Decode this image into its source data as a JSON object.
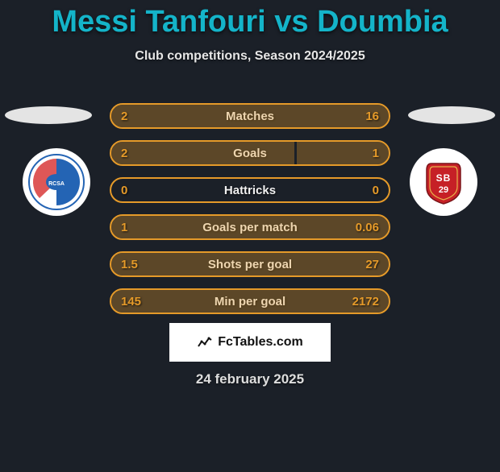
{
  "title": "Messi Tanfouri vs Doumbia",
  "title_color": "#14b4c9",
  "subtitle": "Club competitions, Season 2024/2025",
  "background_color": "#1b2028",
  "accent_color": "#e59a29",
  "text_outline_color": "#ffffff",
  "left_crest": {
    "name": "racing-strasbourg",
    "primary": "#2464b4",
    "secondary": "#d83a3a",
    "label": "RCSA"
  },
  "right_crest": {
    "name": "stade-brestois",
    "primary": "#c62026",
    "secondary": "#ffffff",
    "label": "SB29"
  },
  "stats": [
    {
      "label": "Matches",
      "left_val": "2",
      "right_val": "16",
      "left_pct": 11,
      "right_pct": 89
    },
    {
      "label": "Goals",
      "left_val": "2",
      "right_val": "1",
      "left_pct": 66,
      "right_pct": 33
    },
    {
      "label": "Hattricks",
      "left_val": "0",
      "right_val": "0",
      "left_pct": 0,
      "right_pct": 0
    },
    {
      "label": "Goals per match",
      "left_val": "1",
      "right_val": "0.06",
      "left_pct": 94,
      "right_pct": 6
    },
    {
      "label": "Shots per goal",
      "left_val": "1.5",
      "right_val": "27",
      "left_pct": 5,
      "right_pct": 95
    },
    {
      "label": "Min per goal",
      "left_val": "145",
      "right_val": "2172",
      "left_pct": 6,
      "right_pct": 94
    }
  ],
  "stat_label_color": "#f0f0f0",
  "attribution": "FcTables.com",
  "date": "24 february 2025"
}
